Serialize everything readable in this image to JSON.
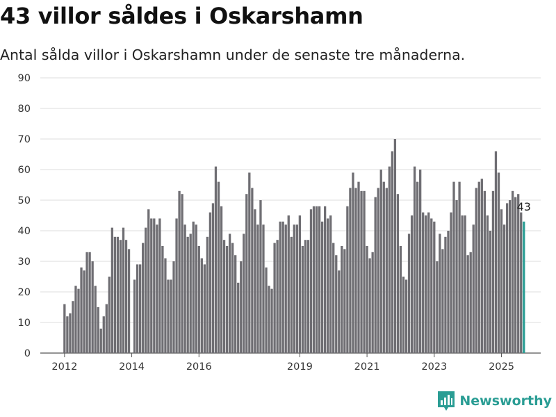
{
  "header": {
    "title": "43 villor såldes i Oskarshamn",
    "subtitle": "Antal sålda villor i Oskarshamn under de senaste tre månaderna."
  },
  "brand": {
    "name": "Newsworthy"
  },
  "colors": {
    "bar": "#6f6e73",
    "highlight": "#2a9d94",
    "grid": "#dcdcdc",
    "axis": "#555555"
  },
  "chart_data": {
    "type": "bar",
    "ylim": [
      0,
      90
    ],
    "yticks": [
      0,
      10,
      20,
      30,
      40,
      50,
      60,
      70,
      80,
      90
    ],
    "grid": true,
    "start": "2012-01",
    "xticks": [
      {
        "label": "2012",
        "index": 0
      },
      {
        "label": "2014",
        "index": 24
      },
      {
        "label": "2016",
        "index": 48
      },
      {
        "label": "2019",
        "index": 84
      },
      {
        "label": "2021",
        "index": 108
      },
      {
        "label": "2023",
        "index": 132
      },
      {
        "label": "2025",
        "index": 156
      }
    ],
    "values": [
      16,
      12,
      13,
      17,
      22,
      21,
      28,
      27,
      33,
      33,
      30,
      22,
      15,
      8,
      12,
      16,
      25,
      41,
      38,
      38,
      37,
      41,
      37,
      34,
      0,
      24,
      29,
      29,
      36,
      41,
      47,
      44,
      44,
      42,
      44,
      35,
      31,
      24,
      24,
      30,
      44,
      53,
      52,
      42,
      38,
      39,
      43,
      42,
      35,
      31,
      29,
      38,
      46,
      49,
      61,
      56,
      48,
      37,
      35,
      39,
      36,
      32,
      23,
      30,
      39,
      52,
      59,
      54,
      47,
      42,
      50,
      42,
      28,
      22,
      21,
      36,
      37,
      43,
      43,
      42,
      45,
      38,
      42,
      42,
      45,
      35,
      37,
      37,
      47,
      48,
      48,
      48,
      43,
      48,
      44,
      45,
      36,
      32,
      27,
      35,
      34,
      48,
      54,
      59,
      54,
      56,
      53,
      53,
      35,
      31,
      33,
      51,
      54,
      60,
      56,
      54,
      61,
      66,
      70,
      52,
      35,
      25,
      24,
      39,
      45,
      61,
      56,
      60,
      46,
      45,
      46,
      44,
      43,
      30,
      39,
      34,
      38,
      40,
      46,
      56,
      50,
      56,
      45,
      45,
      32,
      33,
      42,
      54,
      56,
      57,
      53,
      45,
      40,
      53,
      66,
      59,
      47,
      42,
      49,
      50,
      53,
      51,
      52,
      46,
      43
    ],
    "highlight_label": "43"
  }
}
